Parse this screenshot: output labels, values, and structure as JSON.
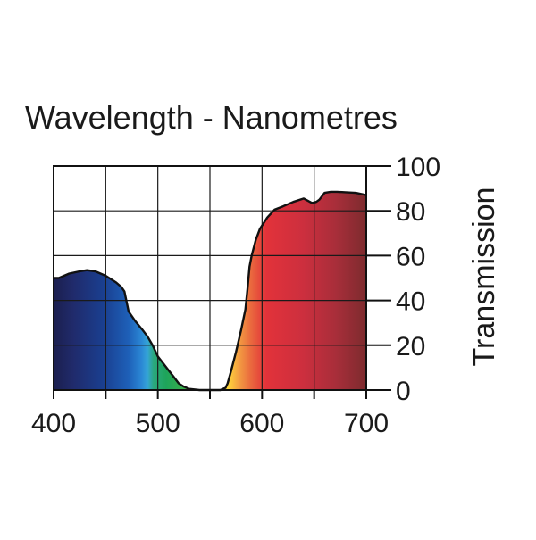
{
  "chart_data": {
    "type": "area",
    "title": "Wavelength - Nanometres",
    "xlabel": "",
    "ylabel": "Transmission",
    "xlim": [
      400,
      700
    ],
    "ylim": [
      0,
      100
    ],
    "x_ticks": [
      400,
      500,
      600,
      700
    ],
    "y_ticks": [
      0,
      20,
      40,
      60,
      80,
      100
    ],
    "grid": true,
    "series": [
      {
        "name": "Transmission",
        "x": [
          400,
          405,
          415,
          425,
          432,
          440,
          450,
          460,
          465,
          468,
          472,
          478,
          485,
          490,
          495,
          500,
          505,
          510,
          515,
          520,
          525,
          530,
          540,
          550,
          560,
          565,
          567,
          570,
          575,
          580,
          584,
          586,
          588,
          590,
          594,
          598,
          605,
          612,
          620,
          630,
          640,
          644,
          648,
          652,
          655,
          660,
          666,
          672,
          680,
          690,
          700
        ],
        "values": [
          50,
          50,
          52,
          53,
          53.5,
          53,
          51,
          48,
          46,
          44,
          35,
          31,
          27,
          24,
          20,
          15,
          12,
          9,
          6,
          3,
          1.5,
          0.5,
          0,
          0,
          0,
          1,
          3,
          8,
          17,
          27,
          36,
          45,
          55,
          60,
          67,
          72,
          77,
          80.5,
          82,
          84,
          85.5,
          84.5,
          83.5,
          84,
          85,
          88,
          88.5,
          88.5,
          88.3,
          88,
          87
        ]
      }
    ]
  }
}
